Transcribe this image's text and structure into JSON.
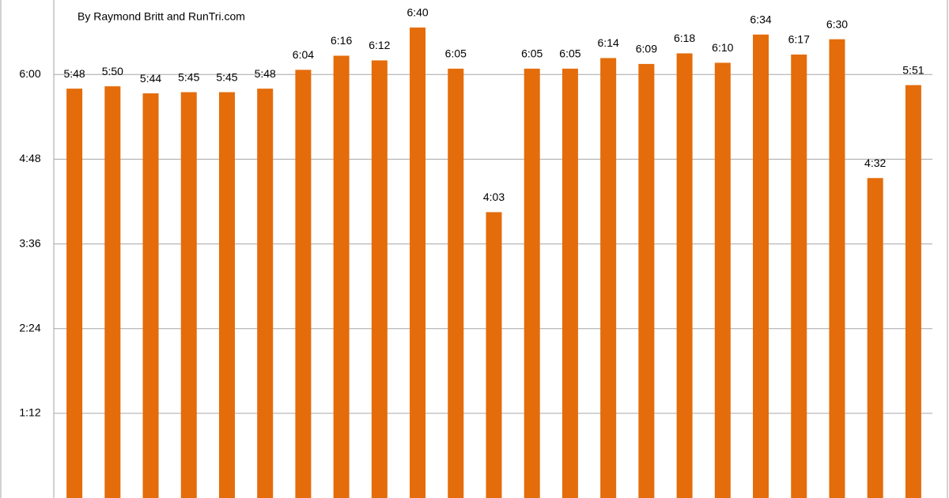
{
  "chart_data": {
    "type": "bar",
    "title": "By Raymond Britt and RunTri.com",
    "categories": [
      null,
      null,
      null,
      null,
      null,
      null,
      null,
      null,
      null,
      null,
      null,
      null,
      null,
      null,
      null,
      null,
      null,
      null,
      null,
      null,
      null,
      null,
      null
    ],
    "values": [
      348,
      350,
      344,
      345,
      345,
      348,
      364,
      376,
      372,
      400,
      365,
      243,
      365,
      365,
      374,
      369,
      378,
      370,
      394,
      377,
      390,
      272,
      351
    ],
    "value_labels": [
      "5:48",
      "5:50",
      "5:44",
      "5:45",
      "5:45",
      "5:48",
      "6:04",
      "6:16",
      "6:12",
      "6:40",
      "6:05",
      "4:03",
      "6:05",
      "6:05",
      "6:14",
      "6:09",
      "6:18",
      "6:10",
      "6:34",
      "6:17",
      "6:30",
      "4:32",
      "5:51"
    ],
    "color": "#e46c0a",
    "ylim": [
      0,
      420
    ],
    "yticks": [
      {
        "value": 72,
        "label": "1:12"
      },
      {
        "value": 144,
        "label": "2:24"
      },
      {
        "value": 216,
        "label": "3:36"
      },
      {
        "value": 288,
        "label": "4:48"
      },
      {
        "value": 360,
        "label": "6:00"
      }
    ],
    "grid": true
  }
}
